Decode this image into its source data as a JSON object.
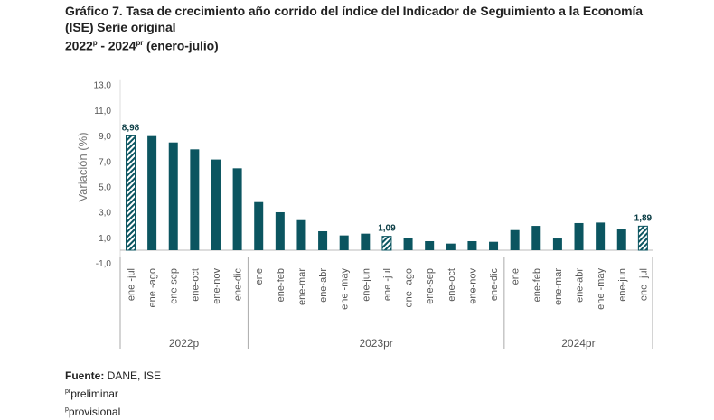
{
  "title": {
    "line1": "Gráfico 7. Tasa de crecimiento año corrido del índice del Indicador de Seguimiento a la Economía",
    "line2": "(ISE) Serie original",
    "line3_a": "2022",
    "line3_a_sup": "p",
    "line3_b": " - 2024",
    "line3_b_sup": "pr",
    "line3_c": " (enero-julio)"
  },
  "notes": {
    "source_label": "Fuente:",
    "source_text": " DANE, ISE",
    "pr_sup": "pr",
    "pr_text": "preliminar",
    "p_sup": "p",
    "p_text": "provisional"
  },
  "chart_data": {
    "type": "bar",
    "ylabel": "Variación (%)",
    "ylim": [
      -1,
      13
    ],
    "yticks": [
      "-1,0",
      "1,0",
      "3,0",
      "5,0",
      "7,0",
      "9,0",
      "11,0",
      "13,0"
    ],
    "ytick_values": [
      -1,
      1,
      3,
      5,
      7,
      9,
      11,
      13
    ],
    "grid": false,
    "bar_color": "#0b5560",
    "categories": [
      "ene -jul",
      "ene -ago",
      "ene-sep",
      "ene-oct",
      "ene-nov",
      "ene-dic",
      "ene",
      "ene-feb",
      "ene-mar",
      "ene-abr",
      "ene -may",
      "ene-jun",
      "ene -jul",
      "ene -ago",
      "ene-sep",
      "ene-oct",
      "ene-nov",
      "ene-dic",
      "ene",
      "ene-feb",
      "ene-mar",
      "ene-abr",
      "ene -may",
      "ene-jun",
      "ene -jul"
    ],
    "groups": [
      {
        "label": "2022p",
        "count": 6
      },
      {
        "label": "2023pr",
        "count": 12
      },
      {
        "label": "2024pr",
        "count": 7
      }
    ],
    "values": [
      8.98,
      8.96,
      8.46,
      7.92,
      7.12,
      6.43,
      3.78,
      2.98,
      2.36,
      1.49,
      1.16,
      1.3,
      1.09,
      0.99,
      0.71,
      0.52,
      0.71,
      0.66,
      1.58,
      1.91,
      0.92,
      2.13,
      2.17,
      1.63,
      1.89
    ],
    "highlighted": [
      0,
      12,
      24
    ],
    "data_labels": [
      {
        "index": 0,
        "text": "8,98"
      },
      {
        "index": 12,
        "text": "1,09"
      },
      {
        "index": 24,
        "text": "1,89"
      }
    ]
  }
}
